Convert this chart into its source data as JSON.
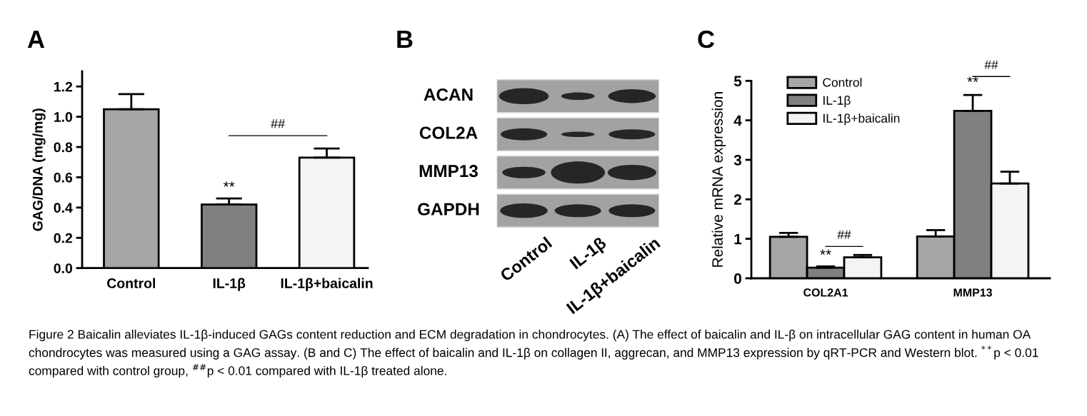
{
  "chart_data": [
    {
      "type": "bar",
      "title": "A",
      "categories": [
        "Control",
        "IL-1β",
        "IL-1β+baicalin"
      ],
      "values": [
        1.05,
        0.42,
        0.73
      ],
      "errors": [
        [
          1.05,
          1.15
        ],
        [
          0.42,
          0.46
        ],
        [
          0.73,
          0.79
        ]
      ],
      "colors": [
        "#a6a6a6",
        "#808080",
        "#f4f4f4"
      ],
      "ylabel": "GAG/DNA (mg/mg)",
      "ylim": [
        0,
        1.3
      ],
      "yticks": [
        {
          "value": 0,
          "label": "0.0"
        },
        0.2,
        0.4,
        0.6,
        0.8,
        {
          "value": 1,
          "label": "1.0"
        },
        1.2
      ],
      "annotations": [
        "**",
        "##"
      ]
    },
    {
      "type": "other",
      "title": "B",
      "categories": [
        "Control",
        "IL-1β",
        "IL-1β+baicalin"
      ],
      "annotations": [
        "ACAN",
        "COL2A",
        "MMP13",
        "GAPDH"
      ]
    },
    {
      "type": "bar",
      "title": "C",
      "categories": [
        "COL2A1",
        "MMP13"
      ],
      "series": [
        {
          "name": "Control",
          "color": "#a6a6a6",
          "values": [
            1.05,
            1.06
          ],
          "errors": [
            [
              1.05,
              1.15
            ],
            [
              1.06,
              1.22
            ]
          ]
        },
        {
          "name": "IL-1β",
          "color": "#808080",
          "values": [
            0.27,
            4.24
          ],
          "errors": [
            [
              0.27,
              0.3
            ],
            [
              4.24,
              4.64
            ]
          ]
        },
        {
          "name": "IL-1β+baicalin",
          "color": "#f4f4f4",
          "values": [
            0.53,
            2.4
          ],
          "errors": [
            [
              0.53,
              0.59
            ],
            [
              2.4,
              2.7
            ]
          ]
        }
      ],
      "ylabel": "Relative mRNA expression",
      "ylim": [
        0,
        5
      ],
      "yticks": [
        0,
        1,
        2,
        3,
        4,
        5
      ],
      "legend": "top left",
      "annotations": [
        "**",
        "##",
        "**",
        "##",
        "Figure 2 Baicalin alleviates IL-1β-induced GAGs content reduction and ECM degradation in chondrocytes. (A) The effect of baicalin and IL-β on intracellular GAG content in human OA chondrocytes was measured using a GAG assay. (B and C) The effect of baicalin and IL-1β on collagen II, aggrecan, and MMP13 expression by qRT-PCR and Western blot. $^{**}$p < 0.01 compared with control group, $^{##}$p < 0.01 compared with IL-1β treated alone."
      ]
    }
  ]
}
